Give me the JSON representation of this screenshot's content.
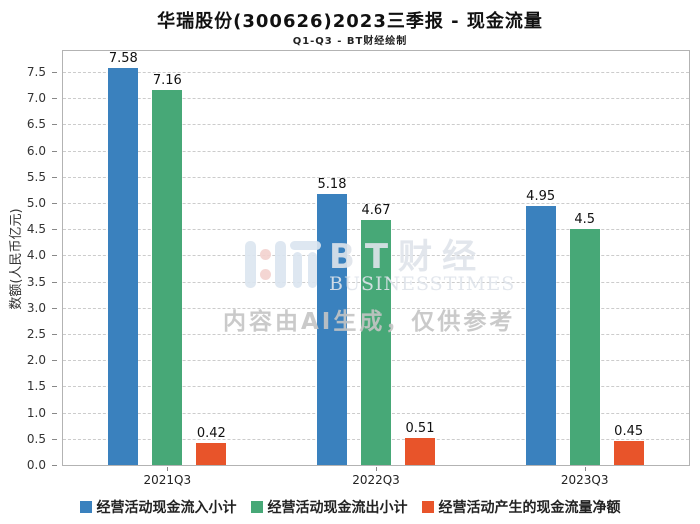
{
  "title": "华瑞股份(300626)2023三季报 - 现金流量",
  "subtitle": "Q1-Q3 - BT财经绘制",
  "watermark": {
    "brand_cn": "BT财经",
    "brand_en": "BUSINESSTIMES",
    "disclaimer": "内容由AI生成，仅供参考"
  },
  "colors": {
    "inflow": "#3a81be",
    "outflow": "#47a877",
    "net": "#e8542a",
    "grid": "#cccccc",
    "axis_border": "#b3b3b3"
  },
  "chart_data": {
    "type": "bar",
    "title": "华瑞股份(300626)2023三季报 - 现金流量",
    "subtitle": "Q1-Q3 - BT财经绘制",
    "categories": [
      "2021Q3",
      "2022Q3",
      "2023Q3"
    ],
    "series": [
      {
        "name": "经营活动现金流入小计",
        "color": "#3a81be",
        "values": [
          7.58,
          5.18,
          4.95
        ]
      },
      {
        "name": "经营活动现金流出小计",
        "color": "#47a877",
        "values": [
          7.16,
          4.67,
          4.5
        ]
      },
      {
        "name": "经营活动产生的现金流量净额",
        "color": "#e8542a",
        "values": [
          0.42,
          0.51,
          0.45
        ]
      }
    ],
    "xlabel": "",
    "ylabel": "数额(人民币亿元)",
    "ylim": [
      0,
      7.9
    ],
    "ytick_step": 0.5,
    "ytick_max": 7.5,
    "grid": true,
    "legend_position": "bottom"
  }
}
